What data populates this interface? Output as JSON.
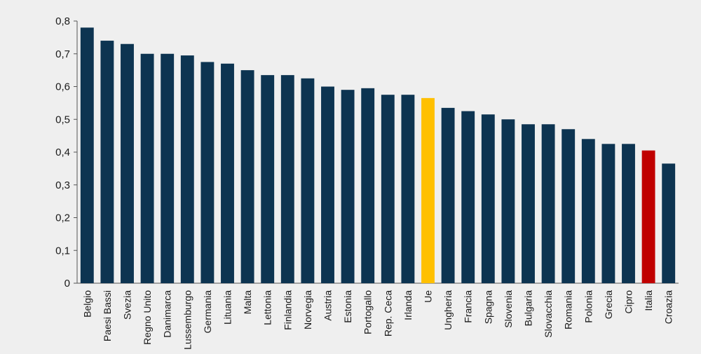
{
  "chart_data": {
    "type": "bar",
    "categories": [
      "Belgio",
      "Paesi Bassi",
      "Svezia",
      "Regno Unito",
      "Danimarca",
      "Lussemburgo",
      "Germania",
      "Lituania",
      "Malta",
      "Lettonia",
      "Finlandia",
      "Norvegia",
      "Austria",
      "Estonia",
      "Portogallo",
      "Rep. Ceca",
      "Irlanda",
      "Ue",
      "Ungheria",
      "Francia",
      "Spagna",
      "Slovenia",
      "Bulgaria",
      "Slovacchia",
      "Romania",
      "Polonia",
      "Grecia",
      "Cipro",
      "Italia",
      "Croazia"
    ],
    "values": [
      0.78,
      0.74,
      0.73,
      0.7,
      0.7,
      0.695,
      0.675,
      0.67,
      0.65,
      0.635,
      0.635,
      0.625,
      0.6,
      0.59,
      0.595,
      0.575,
      0.575,
      0.565,
      0.535,
      0.525,
      0.515,
      0.5,
      0.485,
      0.485,
      0.47,
      0.44,
      0.425,
      0.425,
      0.405,
      0.365
    ],
    "ylim": [
      0,
      0.8
    ],
    "yticks": [
      "0",
      "0,1",
      "0,2",
      "0,3",
      "0,4",
      "0,5",
      "0,6",
      "0,7",
      "0,8"
    ],
    "grid": false,
    "colors": {
      "default": "#0d3451",
      "Ue": "#ffc000",
      "Italia": "#c00000"
    }
  }
}
